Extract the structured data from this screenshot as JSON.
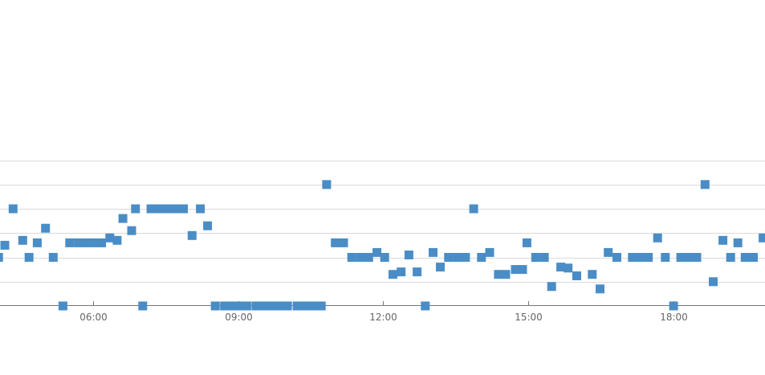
{
  "chart_data": {
    "type": "scatter",
    "xlabel": "",
    "ylabel": "",
    "x_unit": "hours",
    "xlim": [
      4.08,
      19.89
    ],
    "ylim": [
      0,
      3
    ],
    "x_ticks": [
      {
        "x": 6,
        "label": "06:00"
      },
      {
        "x": 9,
        "label": "09:00"
      },
      {
        "x": 12,
        "label": "12:00"
      },
      {
        "x": 15,
        "label": "15:00"
      },
      {
        "x": 18,
        "label": "18:00"
      }
    ],
    "y_gridlines": [
      0,
      0.5,
      1,
      1.5,
      2,
      2.5,
      3
    ],
    "grid": "horizontal",
    "series_color": "#4a8dc6",
    "points": [
      [
        4.05,
        1
      ],
      [
        4.18,
        1.25
      ],
      [
        4.35,
        2
      ],
      [
        4.55,
        1.35
      ],
      [
        4.68,
        1
      ],
      [
        4.85,
        1.3
      ],
      [
        5.02,
        1.6
      ],
      [
        5.18,
        1
      ],
      [
        5.38,
        0
      ],
      [
        5.52,
        1.3
      ],
      [
        5.7,
        1.3
      ],
      [
        5.85,
        1.3
      ],
      [
        6.02,
        1.3
      ],
      [
        6.18,
        1.3
      ],
      [
        6.35,
        1.4
      ],
      [
        6.5,
        1.35
      ],
      [
        6.62,
        1.8
      ],
      [
        6.8,
        1.55
      ],
      [
        6.88,
        2
      ],
      [
        7.03,
        0
      ],
      [
        7.2,
        2
      ],
      [
        7.38,
        2
      ],
      [
        7.53,
        2
      ],
      [
        7.7,
        2
      ],
      [
        7.87,
        2
      ],
      [
        8.05,
        1.45
      ],
      [
        8.22,
        2
      ],
      [
        8.37,
        1.65
      ],
      [
        8.53,
        0
      ],
      [
        8.72,
        0
      ],
      [
        8.88,
        0
      ],
      [
        9.03,
        0
      ],
      [
        9.18,
        0
      ],
      [
        9.37,
        0
      ],
      [
        9.53,
        0
      ],
      [
        9.7,
        0
      ],
      [
        9.87,
        0
      ],
      [
        10.02,
        0
      ],
      [
        10.22,
        0
      ],
      [
        10.38,
        0
      ],
      [
        10.55,
        0
      ],
      [
        10.72,
        0
      ],
      [
        10.83,
        2.5
      ],
      [
        11.01,
        1.3
      ],
      [
        11.18,
        1.3
      ],
      [
        11.35,
        1
      ],
      [
        11.53,
        1
      ],
      [
        11.7,
        1
      ],
      [
        11.87,
        1.1
      ],
      [
        12.03,
        1
      ],
      [
        12.2,
        0.65
      ],
      [
        12.37,
        0.7
      ],
      [
        12.53,
        1.05
      ],
      [
        12.7,
        0.7
      ],
      [
        12.87,
        0
      ],
      [
        13.03,
        1.1
      ],
      [
        13.18,
        0.8
      ],
      [
        13.35,
        1
      ],
      [
        13.53,
        1
      ],
      [
        13.7,
        1
      ],
      [
        13.87,
        2
      ],
      [
        14.03,
        1
      ],
      [
        14.2,
        1.1
      ],
      [
        14.38,
        0.65
      ],
      [
        14.53,
        0.65
      ],
      [
        14.73,
        0.75
      ],
      [
        14.88,
        0.75
      ],
      [
        14.97,
        1.3
      ],
      [
        15.15,
        1
      ],
      [
        15.33,
        1
      ],
      [
        15.48,
        0.4
      ],
      [
        15.67,
        0.8
      ],
      [
        15.82,
        0.78
      ],
      [
        16.0,
        0.62
      ],
      [
        16.32,
        0.65
      ],
      [
        16.48,
        0.35
      ],
      [
        16.65,
        1.1
      ],
      [
        16.83,
        1
      ],
      [
        17.15,
        1
      ],
      [
        17.32,
        1
      ],
      [
        17.48,
        1
      ],
      [
        17.67,
        1.4
      ],
      [
        17.83,
        1
      ],
      [
        18.0,
        0
      ],
      [
        18.15,
        1
      ],
      [
        18.33,
        1
      ],
      [
        18.48,
        1
      ],
      [
        18.65,
        2.5
      ],
      [
        18.82,
        0.5
      ],
      [
        19.02,
        1.35
      ],
      [
        19.18,
        1
      ],
      [
        19.33,
        1.3
      ],
      [
        19.48,
        1
      ],
      [
        19.65,
        1
      ],
      [
        19.85,
        1.4
      ]
    ]
  }
}
